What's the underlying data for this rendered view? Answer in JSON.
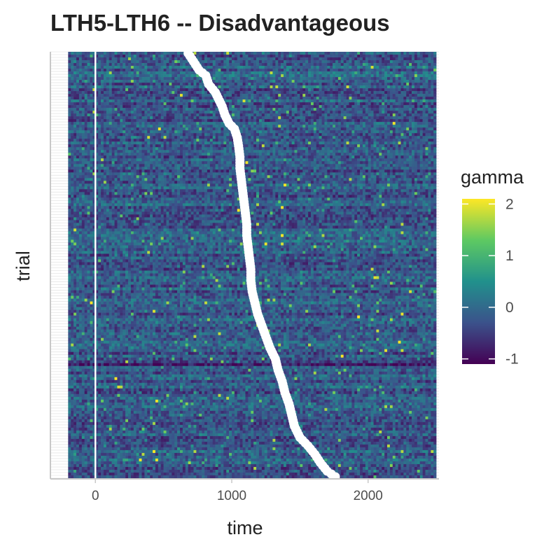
{
  "chart_data": {
    "type": "heatmap",
    "title": "LTH5-LTH6 -- Disadvantageous",
    "xlabel": "time",
    "ylabel": "trial",
    "xlim": [
      -330,
      2520
    ],
    "x_ticks": [
      0,
      1000,
      2000
    ],
    "x_tick_labels": [
      "0",
      "1000",
      "2000"
    ],
    "x_data_range": [
      -200,
      2500
    ],
    "n_trials": 152,
    "grid": "on",
    "y_tick_labels": "none",
    "onset_line_x": 0,
    "colorscale": {
      "name": "viridis",
      "title": "gamma",
      "min": -1.1,
      "max": 2.1,
      "ticks": [
        -1,
        0,
        1,
        2
      ],
      "tick_labels": [
        "-1",
        "0",
        "1",
        "2"
      ],
      "colors": [
        "#440154",
        "#3b528b",
        "#21918c",
        "#5ec962",
        "#fde725"
      ]
    },
    "heatmap_base_value": -0.2,
    "response_times": [
      [
        1,
        680
      ],
      [
        4,
        720
      ],
      [
        7,
        760
      ],
      [
        9,
        810
      ],
      [
        12,
        830
      ],
      [
        15,
        880
      ],
      [
        18,
        910
      ],
      [
        20,
        930
      ],
      [
        23,
        950
      ],
      [
        26,
        980
      ],
      [
        28,
        1020
      ],
      [
        31,
        1040
      ],
      [
        34,
        1050
      ],
      [
        38,
        1060
      ],
      [
        42,
        1060
      ],
      [
        46,
        1070
      ],
      [
        50,
        1080
      ],
      [
        54,
        1090
      ],
      [
        58,
        1100
      ],
      [
        62,
        1110
      ],
      [
        66,
        1110
      ],
      [
        70,
        1120
      ],
      [
        74,
        1130
      ],
      [
        78,
        1140
      ],
      [
        82,
        1140
      ],
      [
        86,
        1150
      ],
      [
        90,
        1170
      ],
      [
        94,
        1190
      ],
      [
        98,
        1220
      ],
      [
        102,
        1250
      ],
      [
        106,
        1280
      ],
      [
        110,
        1320
      ],
      [
        114,
        1340
      ],
      [
        118,
        1370
      ],
      [
        122,
        1390
      ],
      [
        126,
        1420
      ],
      [
        130,
        1440
      ],
      [
        134,
        1460
      ],
      [
        138,
        1500
      ],
      [
        141,
        1560
      ],
      [
        144,
        1610
      ],
      [
        147,
        1650
      ],
      [
        150,
        1700
      ],
      [
        152,
        1760
      ]
    ]
  }
}
